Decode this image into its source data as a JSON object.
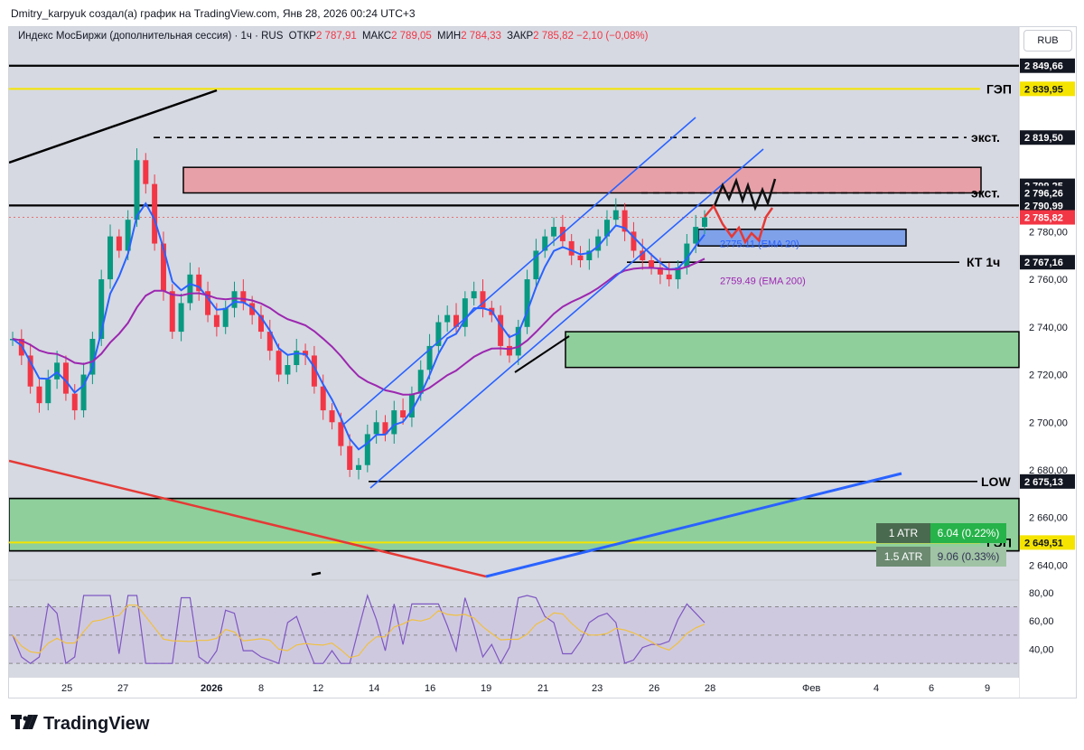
{
  "header": {
    "attribution": "Dmitry_karpyuk создал(а) график на TradingView.com, Янв 28, 2026 00:24 UTC+3"
  },
  "legend": {
    "instrument": "Индекс МосБиржи (дополнительная сессия) · 1ч · RUS",
    "open_label": "ОТКР",
    "open": "2 787,91",
    "high_label": "МАКС",
    "high": "2 789,05",
    "low_label": "МИН",
    "low": "2 784,33",
    "close_label": "ЗАКР",
    "close": "2 785,82",
    "change": "−2,10 (−0,08%)"
  },
  "currency_button": "RUB",
  "brand": "TradingView",
  "colors": {
    "ema20": "#2962ff",
    "ema200": "#9c27b0",
    "down": "#f23645",
    "up": "#089981",
    "gap": "#f5e400",
    "zone_red": "#e8a0a8",
    "zone_green": "#8fcf9b",
    "zone_blue": "#7fa1ea"
  },
  "atr": [
    {
      "label": "1 ATR",
      "value": "6.04 (0.22%)"
    },
    {
      "label": "1.5 ATR",
      "value": "9.06 (0.33%)"
    }
  ],
  "chart_data": {
    "type": "candlestick",
    "timeframe": "1ч",
    "x_ticks": [
      "25",
      "27",
      "2026",
      "8",
      "12",
      "14",
      "16",
      "19",
      "21",
      "23",
      "26",
      "28",
      "Фев",
      "4",
      "6",
      "9"
    ],
    "y_ticks": [
      "2 780,00",
      "2 760,00",
      "2 740,00",
      "2 720,00",
      "2 700,00",
      "2 680,00",
      "2 660,00",
      "2 640,00"
    ],
    "ylim": [
      2636,
      2856
    ],
    "last_price": "2 785,82",
    "levels": [
      {
        "price": 2849.66,
        "label": "2 849,66",
        "text": ""
      },
      {
        "price": 2839.95,
        "label": "2 839,95",
        "text": "ГЭП"
      },
      {
        "price": 2819.5,
        "label": "2 819,50",
        "text": "экст."
      },
      {
        "price": 2799.25,
        "label": "2 799,25",
        "text": ""
      },
      {
        "price": 2796.26,
        "label": "2 796,26",
        "text": "экст."
      },
      {
        "price": 2790.99,
        "label": "2 790,99",
        "text": ""
      },
      {
        "price": 2767.16,
        "label": "2 767,16",
        "text": "КТ 1ч"
      },
      {
        "price": 2675.13,
        "label": "2 675,13",
        "text": "LOW"
      },
      {
        "price": 2649.51,
        "label": "2 649,51",
        "text": "ГЭП"
      }
    ],
    "ema": [
      {
        "name": "EMA 20",
        "label": "2775.11 (EMA 20)",
        "value": 2775.11
      },
      {
        "name": "EMA 200",
        "label": "2759.49 (EMA 200)",
        "value": 2759.49
      }
    ],
    "zones": [
      {
        "type": "resistance",
        "from": 2796.26,
        "to": 2807
      },
      {
        "type": "support",
        "from": 2723,
        "to": 2738
      },
      {
        "type": "ema-box",
        "from": 2774,
        "to": 2781
      },
      {
        "type": "gap-support",
        "from": 2646,
        "to": 2668
      }
    ],
    "rsi": {
      "y_ticks": [
        "80,00",
        "60,00",
        "40,00"
      ],
      "ylim": [
        25,
        85
      ],
      "bands": [
        70,
        50,
        30
      ]
    },
    "series_close": [
      2735,
      2728,
      2715,
      2708,
      2718,
      2725,
      2712,
      2705,
      2720,
      2735,
      2760,
      2778,
      2772,
      2785,
      2810,
      2800,
      2775,
      2755,
      2738,
      2750,
      2762,
      2755,
      2745,
      2740,
      2748,
      2755,
      2750,
      2745,
      2738,
      2730,
      2720,
      2724,
      2730,
      2728,
      2715,
      2705,
      2700,
      2690,
      2680,
      2682,
      2695,
      2700,
      2695,
      2705,
      2702,
      2712,
      2722,
      2732,
      2742,
      2745,
      2740,
      2752,
      2755,
      2748,
      2745,
      2732,
      2728,
      2740,
      2760,
      2772,
      2778,
      2782,
      2776,
      2770,
      2768,
      2772,
      2778,
      2785,
      2789,
      2780,
      2772,
      2768,
      2765,
      2762,
      2760,
      2765,
      2775,
      2782,
      2786
    ]
  }
}
